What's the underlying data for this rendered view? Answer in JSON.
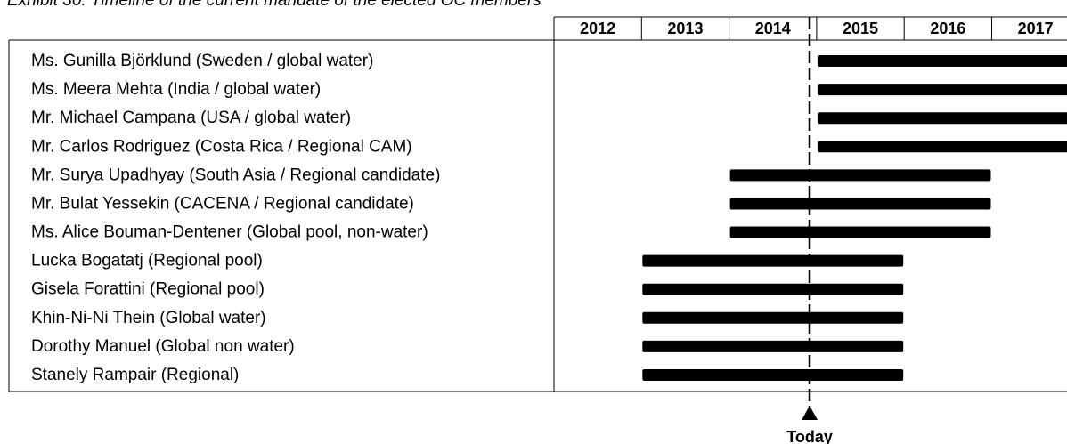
{
  "chart_data": {
    "type": "timeline",
    "title": "Exhibit 30: Timeline of the current mandate of the elected OC members",
    "categories": [
      "Ms. Gunilla Björklund (Sweden / global water)",
      "Ms. Meera Mehta (India / global water)",
      "Mr. Michael Campana (USA / global water)",
      "Mr. Carlos Rodriguez (Costa Rica / Regional CAM)",
      "Mr. Surya Upadhyay (South Asia / Regional candidate)",
      "Mr. Bulat Yessekin (CACENA / Regional candidate)",
      "Ms. Alice Bouman-Dentener (Global pool, non-water)",
      "Lucka Bogatatj (Regional pool)",
      "Gisela Forattini (Regional pool)",
      "Khin-Ni-Ni Thein (Global water)",
      "Dorothy Manuel (Global non water)",
      "Stanely Rampair (Regional)"
    ],
    "start": [
      2015,
      2015,
      2015,
      2015,
      2014,
      2014,
      2014,
      2013,
      2013,
      2013,
      2013,
      2013
    ],
    "end": [
      2018,
      2018,
      2018,
      2018,
      2017,
      2017,
      2017,
      2016,
      2016,
      2016,
      2016,
      2016
    ],
    "color": "#000000",
    "xlim": [
      2012,
      2018
    ],
    "xticks": [
      2012,
      2013,
      2014,
      2015,
      2016,
      2017
    ],
    "marker": {
      "label": "Today",
      "value": 2014.92
    }
  }
}
